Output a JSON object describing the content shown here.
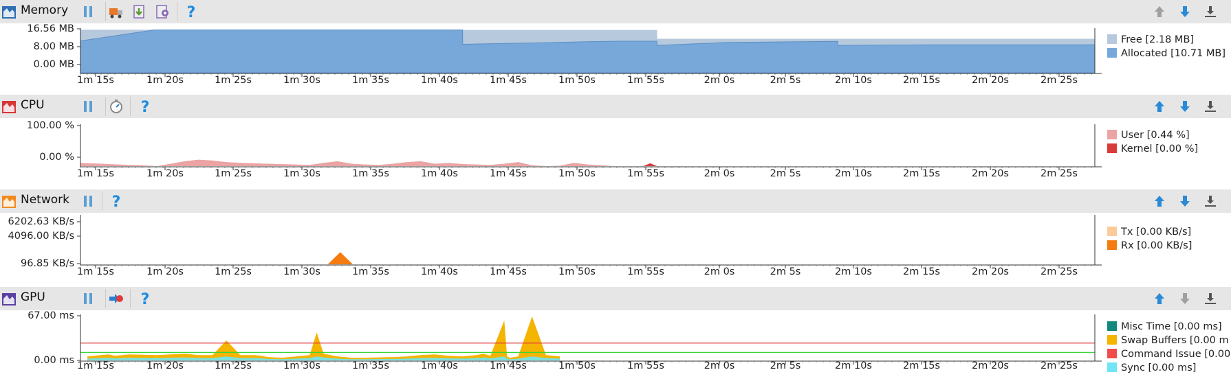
{
  "panels": [
    {
      "id": "memory",
      "title": "Memory",
      "icon": "memory-monitor-icon",
      "color": "#2c6fb3",
      "toolbar_buttons": [
        "pause-icon",
        "gc-truck-icon",
        "heap-dump-icon",
        "allocation-tracking-icon",
        "help-icon"
      ],
      "y_axis": [
        "16.56 MB",
        "8.00 MB",
        "0.00 MB"
      ],
      "legend": [
        {
          "label": "Free [2.18 MB]",
          "color": "#b7c9dd"
        },
        {
          "label": "Allocated [10.71 MB]",
          "color": "#77a8d9"
        }
      ]
    },
    {
      "id": "cpu",
      "title": "CPU",
      "icon": "cpu-monitor-icon",
      "color": "#d93636",
      "toolbar_buttons": [
        "pause-icon",
        "method-trace-stopwatch-icon",
        "help-icon"
      ],
      "y_axis": [
        "100.00 %",
        "0.00 %"
      ],
      "legend": [
        {
          "label": "User [0.44 %]",
          "color": "#eba3a3"
        },
        {
          "label": "Kernel [0.00 %]",
          "color": "#d93b3b"
        }
      ]
    },
    {
      "id": "network",
      "title": "Network",
      "icon": "network-monitor-icon",
      "color": "#f28a1e",
      "toolbar_buttons": [
        "pause-icon",
        "help-icon"
      ],
      "y_axis": [
        "6202.63 KB/s",
        "4096.00 KB/s",
        "96.85 KB/s"
      ],
      "legend": [
        {
          "label": "Tx [0.00 KB/s]",
          "color": "#fccb9c"
        },
        {
          "label": "Rx [0.00 KB/s]",
          "color": "#f57c0e"
        }
      ]
    },
    {
      "id": "gpu",
      "title": "GPU",
      "icon": "gpu-monitor-icon",
      "color": "#5a3fa3",
      "toolbar_buttons": [
        "pause-icon",
        "gpu-record-icon",
        "help-icon"
      ],
      "y_axis": [
        "67.00 ms",
        "0.00 ms"
      ],
      "legend": [
        {
          "label": "Misc Time [0.00 ms]",
          "color": "#13897e"
        },
        {
          "label": "Swap Buffers [0.00 m",
          "color": "#f5b400"
        },
        {
          "label": "Command Issue [0.00",
          "color": "#f24b4b"
        },
        {
          "label": "Sync [0.00 ms]",
          "color": "#6ee6f5"
        }
      ]
    }
  ],
  "time_axis": [
    "1m 15s",
    "1m 20s",
    "1m 25s",
    "1m 30s",
    "1m 35s",
    "1m 40s",
    "1m 45s",
    "1m 50s",
    "1m 55s",
    "2m 0s",
    "2m 5s",
    "2m 10s",
    "2m 15s",
    "2m 20s",
    "2m 25s"
  ],
  "nav_buttons": [
    "move-up-icon",
    "move-down-icon",
    "snap-to-bottom-icon"
  ],
  "chart_data": [
    {
      "type": "area",
      "title": "Memory",
      "x_range": [
        "1m 13s",
        "2m 28s"
      ],
      "ylim": [
        0,
        16.56
      ],
      "y_unit": "MB",
      "series": [
        {
          "name": "Allocated",
          "x": [
            74.5,
            79.8,
            79.8,
            102,
            102,
            107,
            111,
            113,
            116,
            116,
            121,
            129,
            129,
            136,
            147.5
          ],
          "values": [
            12.2,
            16.4,
            16.4,
            16.4,
            10.9,
            11.4,
            11.9,
            12.1,
            12.1,
            10.5,
            11.6,
            12.0,
            10.5,
            10.7,
            10.7
          ]
        },
        {
          "name": "Free",
          "x": [
            74.5,
            102,
            102,
            116,
            116,
            147.5
          ],
          "values": [
            16.5,
            16.5,
            16.4,
            16.4,
            13.0,
            13.0
          ]
        }
      ]
    },
    {
      "type": "area",
      "title": "CPU",
      "ylim": [
        0,
        100
      ],
      "y_unit": "%",
      "series": [
        {
          "name": "User",
          "x": [
            74.5,
            76,
            78,
            79,
            80,
            81,
            82,
            83,
            84,
            85,
            86,
            88,
            90,
            91,
            92,
            93,
            94,
            95,
            96,
            97,
            98,
            99,
            100,
            101,
            102,
            103,
            104,
            105,
            106,
            107,
            108,
            109,
            110,
            111,
            112,
            113,
            114
          ],
          "values": [
            8,
            6,
            3,
            2,
            0,
            6,
            12,
            16,
            14,
            10,
            8,
            6,
            4,
            3,
            8,
            12,
            6,
            4,
            3,
            6,
            10,
            12,
            6,
            8,
            5,
            4,
            3,
            6,
            10,
            2,
            0,
            1,
            8,
            4,
            2,
            0,
            0
          ]
        },
        {
          "name": "Kernel",
          "x": [
            114,
            115,
            115.5,
            116,
            117
          ],
          "values": [
            0,
            0,
            7,
            0,
            0
          ]
        }
      ]
    },
    {
      "type": "area",
      "title": "Network",
      "ylim": [
        96.85,
        6202.63
      ],
      "y_unit": "KB/s",
      "series": [
        {
          "name": "Tx",
          "x": [
            74.5,
            147.5
          ],
          "values": [
            96.85,
            96.85
          ]
        },
        {
          "name": "Rx",
          "x": [
            92.3,
            93.2,
            94.1
          ],
          "values": [
            96.85,
            1650,
            96.85
          ]
        }
      ]
    },
    {
      "type": "area",
      "title": "GPU",
      "ylim": [
        0,
        67
      ],
      "y_unit": "ms",
      "thresholds": [
        {
          "value": 26,
          "color": "#e03a3a"
        },
        {
          "value": 12,
          "color": "#39d639"
        }
      ],
      "series": [
        {
          "name": "Misc Time"
        },
        {
          "name": "Swap Buffers",
          "x": [
            75,
            76,
            76.5,
            77,
            78,
            80,
            81,
            82,
            83,
            84,
            85,
            86,
            87,
            87.5,
            88,
            89,
            90,
            91,
            91.5,
            92,
            93,
            94,
            95,
            97,
            98,
            99,
            100,
            101,
            102,
            103,
            103.5,
            104,
            105,
            105.2,
            105.4,
            106,
            107,
            108,
            109
          ],
          "values": [
            6,
            8,
            9,
            7,
            9,
            8,
            9,
            10,
            8,
            8,
            30,
            8,
            8,
            7,
            5,
            4,
            6,
            8,
            42,
            10,
            6,
            4,
            4,
            5,
            6,
            8,
            9,
            7,
            6,
            8,
            10,
            7,
            60,
            6,
            4,
            6,
            66,
            8,
            6
          ]
        }
      ]
    }
  ]
}
